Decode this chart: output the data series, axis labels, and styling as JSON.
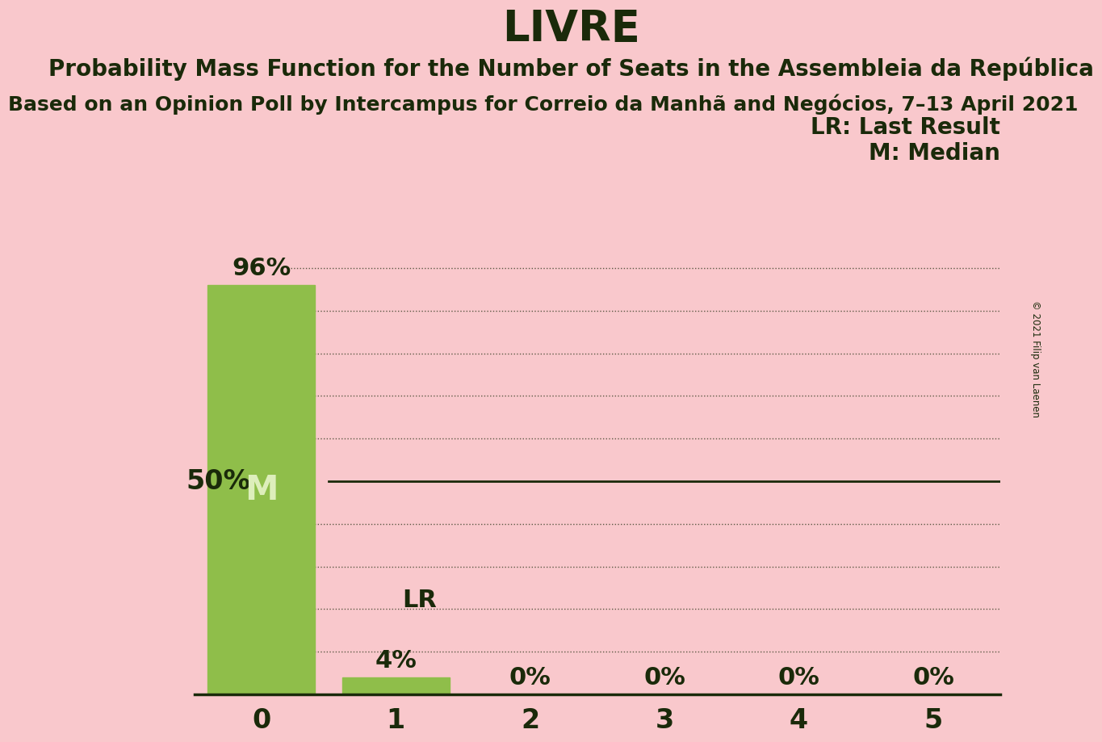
{
  "title": "LIVRE",
  "subtitle1": "Probability Mass Function for the Number of Seats in the Assembleia da República",
  "subtitle2": "Based on an Opinion Poll by Intercampus for Correio da Manhã and Negócios, 7–13 April 2021",
  "copyright": "© 2021 Filip van Laenen",
  "categories": [
    0,
    1,
    2,
    3,
    4,
    5
  ],
  "values": [
    0.96,
    0.04,
    0.0,
    0.0,
    0.0,
    0.0
  ],
  "bar_labels": [
    "96%",
    "4%",
    "0%",
    "0%",
    "0%",
    "0%"
  ],
  "bar_color": "#8fbe4a",
  "background_color": "#f9c8cc",
  "text_color": "#1a2a0a",
  "median_value": 0,
  "median_label": "M",
  "lr_value": 1,
  "lr_label": "LR",
  "legend_lr": "LR: Last Result",
  "legend_m": "M: Median",
  "ylabel_50": "50%",
  "ylim": [
    0,
    1.05
  ],
  "yticks": [
    0.0,
    0.1,
    0.2,
    0.3,
    0.4,
    0.5,
    0.6,
    0.7,
    0.8,
    0.9,
    1.0
  ],
  "median_line_y": 0.5,
  "title_fontsize": 38,
  "subtitle1_fontsize": 20,
  "subtitle2_fontsize": 18,
  "tick_fontsize": 24,
  "legend_fontsize": 20,
  "bar_label_fontsize": 22,
  "median_label_fontsize": 30,
  "ylabel_fontsize": 24,
  "lr_label_fontsize": 22
}
